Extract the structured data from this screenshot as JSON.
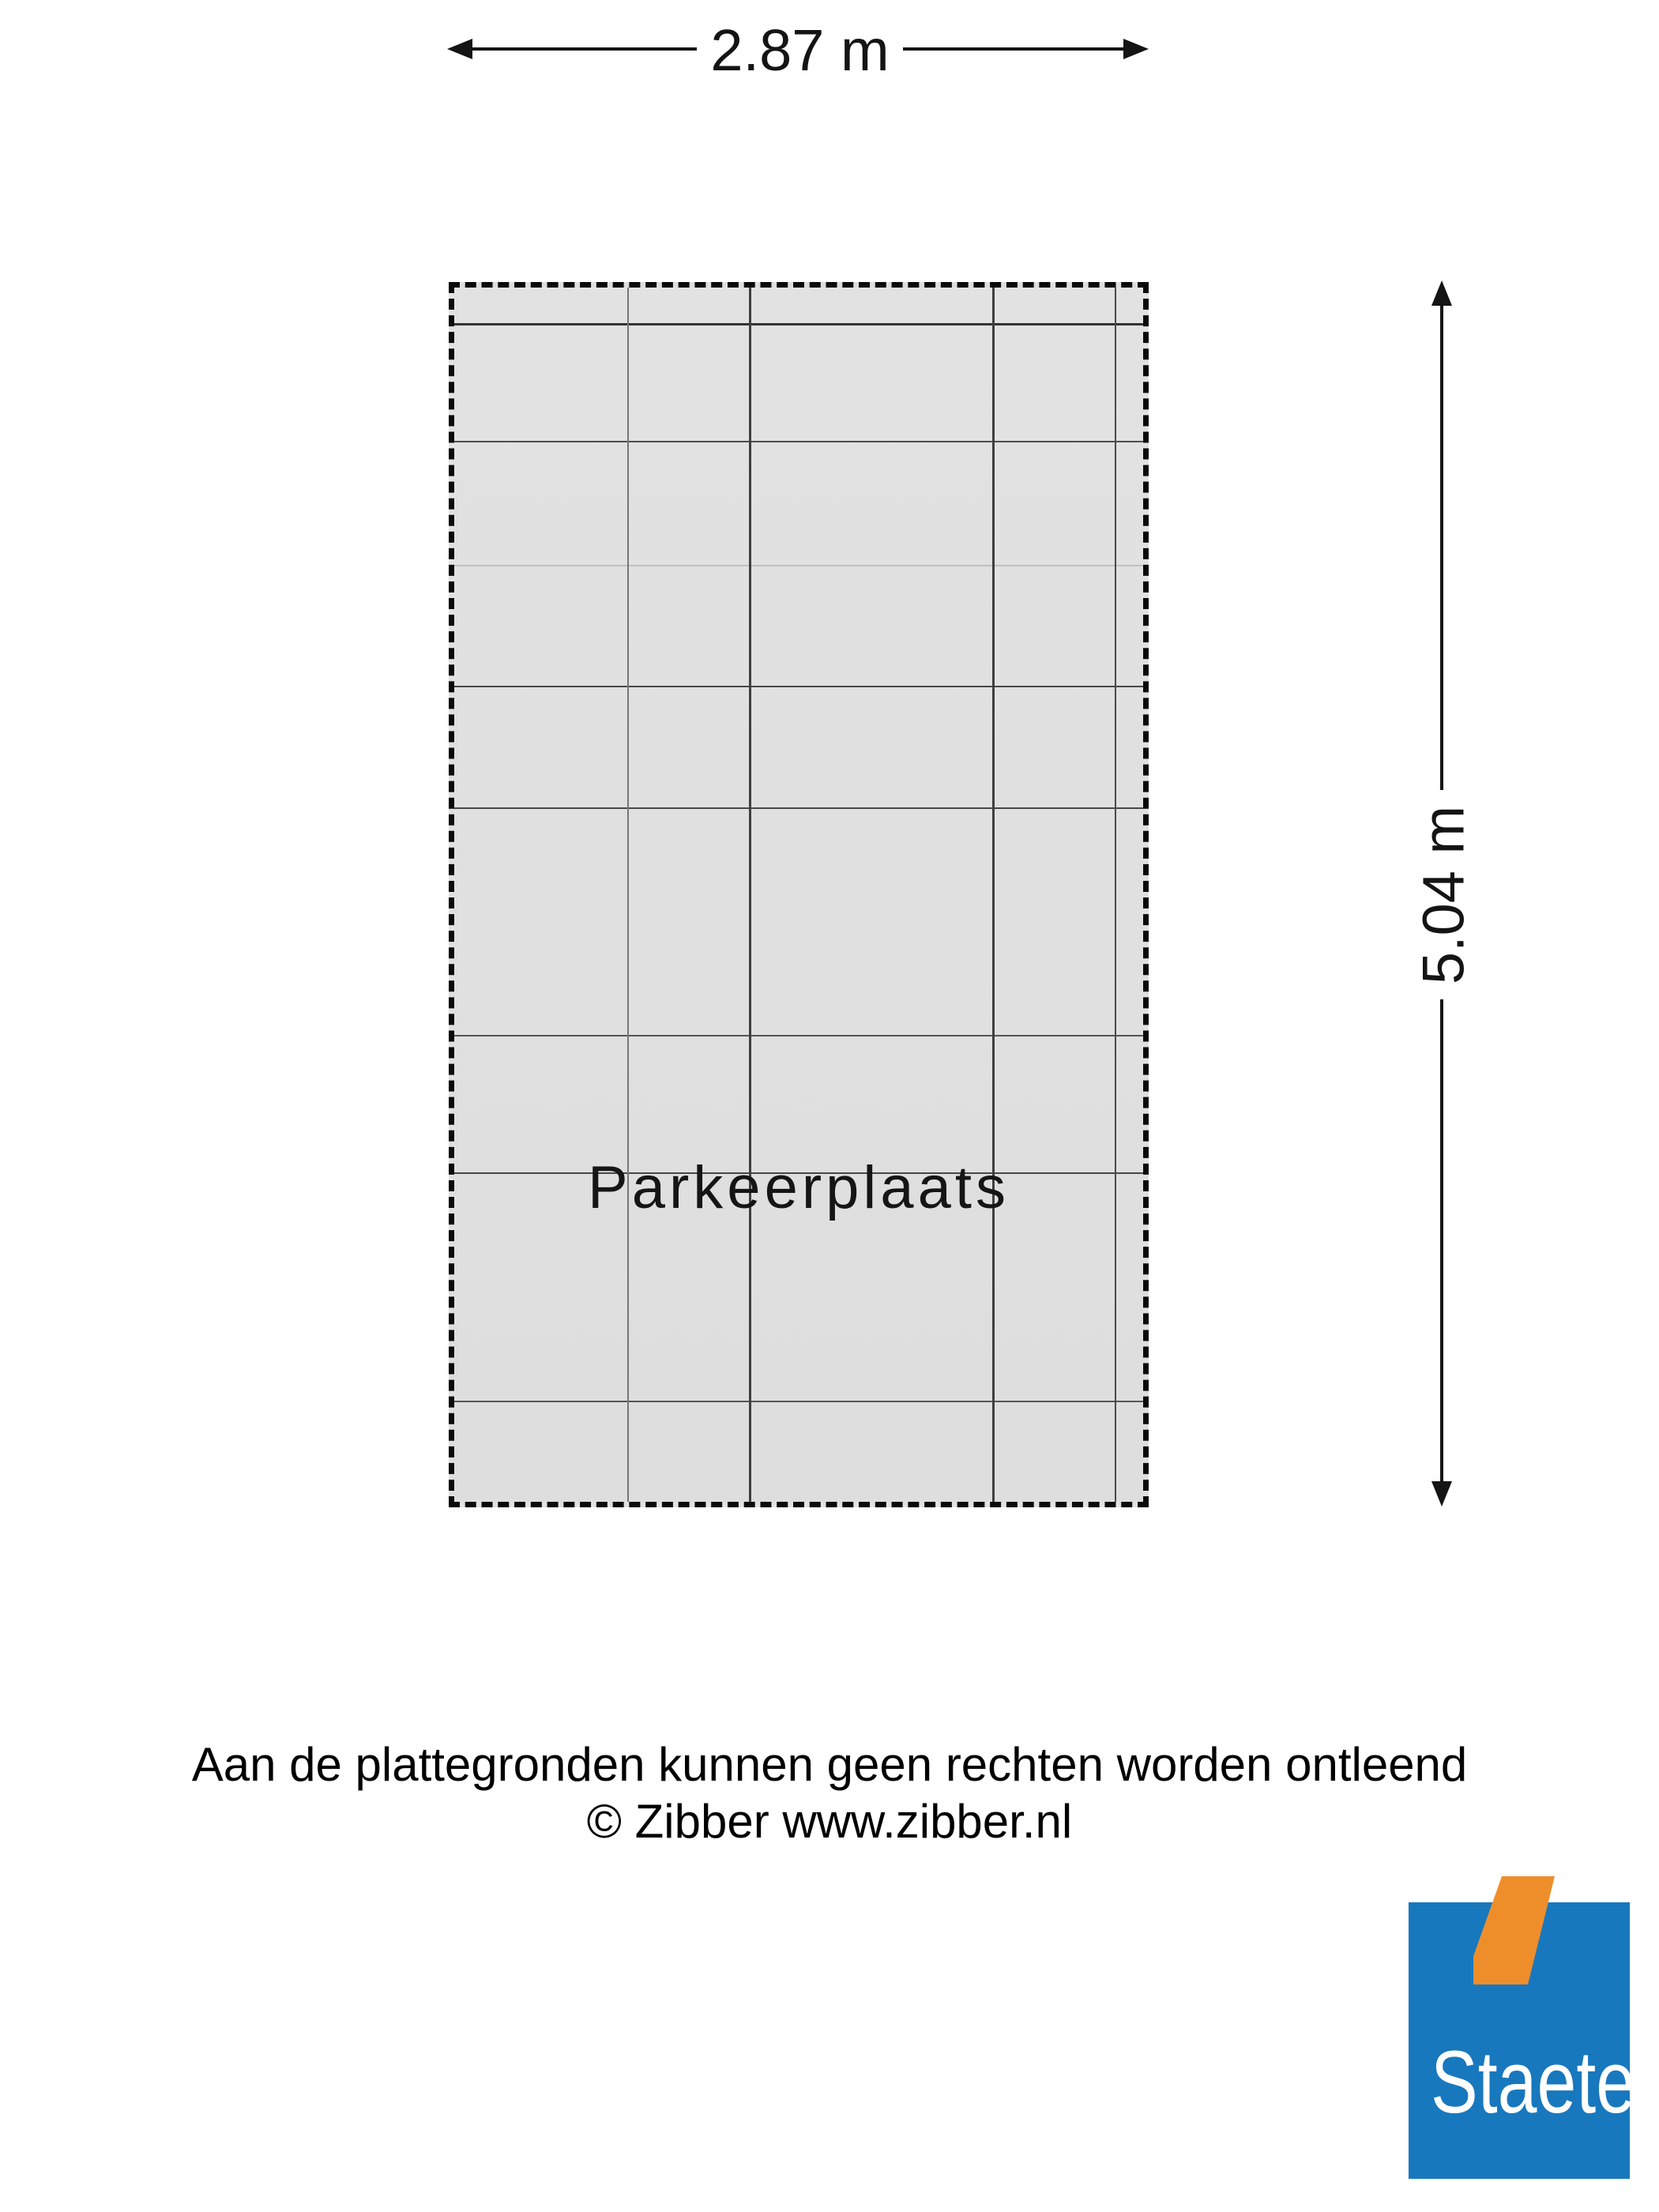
{
  "floorplan": {
    "room": {
      "label": "Parkeerplaats"
    },
    "dimensions": {
      "width_label": "2.87 m",
      "height_label": "5.04 m"
    },
    "grid": {
      "lines": [
        {
          "axis": "h",
          "pos": 45,
          "weight": 3,
          "color": "#333333"
        },
        {
          "axis": "h",
          "pos": 194,
          "weight": 2,
          "color": "#4d4d4d"
        },
        {
          "axis": "h",
          "pos": 351,
          "weight": 2,
          "color": "#c0c0c0"
        },
        {
          "axis": "h",
          "pos": 504,
          "weight": 2,
          "color": "#474747"
        },
        {
          "axis": "h",
          "pos": 658,
          "weight": 2,
          "color": "#474747"
        },
        {
          "axis": "h",
          "pos": 946,
          "weight": 2,
          "color": "#555555"
        },
        {
          "axis": "h",
          "pos": 1120,
          "weight": 2,
          "color": "#474747"
        },
        {
          "axis": "h",
          "pos": 1409,
          "weight": 2,
          "color": "#555555"
        },
        {
          "axis": "v",
          "pos": 219,
          "weight": 2,
          "color": "#767676"
        },
        {
          "axis": "v",
          "pos": 373,
          "weight": 3,
          "color": "#3f3f3f"
        },
        {
          "axis": "v",
          "pos": 681,
          "weight": 3,
          "color": "#3f3f3f"
        },
        {
          "axis": "v",
          "pos": 836,
          "weight": 2,
          "color": "#4a4a4a"
        }
      ]
    },
    "colors": {
      "floor_fill": "#e0e0e0",
      "boundary": "#0a0a0a",
      "dimension_ink": "#141414"
    }
  },
  "footer": {
    "disclaimer": "Aan de plattegronden kunnen geen rechten worden ontleend",
    "copyright": "© Zibber www.zibber.nl"
  },
  "logo": {
    "text": "Staete",
    "square_color": "#1878be",
    "mark_color": "#ee8e2b"
  }
}
